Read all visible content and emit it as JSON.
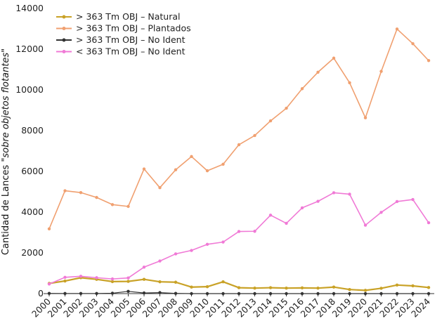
{
  "chart_data": {
    "type": "line",
    "title": "",
    "xlabel": "",
    "ylabel_plain": "Cantidad de Lances ",
    "ylabel_italic": "\"sobre objetos flotantes\"",
    "ylim": [
      0,
      14000
    ],
    "yticks": [
      "0",
      "2000",
      "4000",
      "6000",
      "8000",
      "10000",
      "12000",
      "14000"
    ],
    "categories": [
      "2000",
      "2001",
      "2002",
      "2003",
      "2004",
      "2005",
      "2006",
      "2007",
      "2008",
      "2009",
      "2010",
      "2011",
      "2012",
      "2013",
      "2014",
      "2015",
      "2016",
      "2017",
      "2018",
      "2019",
      "2020",
      "2021",
      "2022",
      "2023",
      "2024"
    ],
    "legend_position": "top-left",
    "series": [
      {
        "name": "> 363 Tm OBJ – Natural",
        "color": "#c9a227",
        "width": 2.2,
        "values": [
          500,
          620,
          780,
          700,
          590,
          600,
          700,
          580,
          560,
          320,
          340,
          580,
          290,
          270,
          290,
          270,
          280,
          270,
          320,
          200,
          160,
          260,
          420,
          380,
          300
        ]
      },
      {
        "name": "> 363 Tm OBJ – Plantados",
        "color": "#f0a070",
        "width": 1.6,
        "values": [
          3180,
          5050,
          4960,
          4720,
          4370,
          4280,
          6120,
          5200,
          6080,
          6730,
          6030,
          6350,
          7310,
          7760,
          8480,
          9100,
          10060,
          10870,
          11560,
          10350,
          8630,
          10910,
          12990,
          12270,
          11440
        ]
      },
      {
        "name": "> 363 Tm OBJ – No Ident",
        "color": "#333333",
        "width": 1.2,
        "values": [
          10,
          5,
          5,
          5,
          20,
          110,
          30,
          50,
          10,
          0,
          0,
          0,
          0,
          0,
          0,
          0,
          0,
          0,
          0,
          0,
          0,
          0,
          0,
          0,
          0
        ]
      },
      {
        "name": "< 363 Tm OBJ – No Ident",
        "color": "#f07ad6",
        "width": 1.6,
        "values": [
          470,
          800,
          850,
          780,
          720,
          770,
          1300,
          1600,
          1950,
          2120,
          2420,
          2530,
          3050,
          3060,
          3850,
          3450,
          4210,
          4530,
          4950,
          4880,
          3360,
          3990,
          4520,
          4620,
          3480
        ]
      }
    ]
  }
}
